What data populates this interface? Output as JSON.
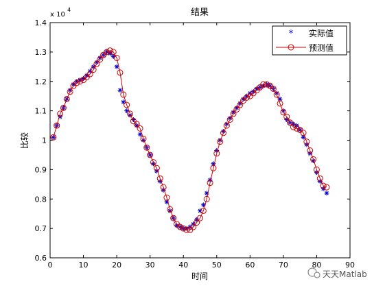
{
  "watermark_text": "天天Matlab",
  "chart_data": {
    "type": "line",
    "title": "结果",
    "xlabel": "时间",
    "ylabel": "比较",
    "y_exponent_label": "x 10",
    "y_exponent_power": "4",
    "xlim": [
      0,
      90
    ],
    "ylim": [
      0.6,
      1.4
    ],
    "x_ticks": [
      0,
      10,
      20,
      30,
      40,
      50,
      60,
      70,
      80,
      90
    ],
    "y_ticks": [
      0.6,
      0.7,
      0.8,
      0.9,
      1.0,
      1.1,
      1.2,
      1.3,
      1.4
    ],
    "y_tick_labels": [
      "0.6",
      "0.7",
      "0.8",
      "0.9",
      "1",
      "1.1",
      "1.2",
      "1.3",
      "1.4"
    ],
    "grid": false,
    "legend_position": "top-right",
    "x": [
      1,
      2,
      3,
      4,
      5,
      6,
      7,
      8,
      9,
      10,
      11,
      12,
      13,
      14,
      15,
      16,
      17,
      18,
      19,
      20,
      21,
      22,
      23,
      24,
      25,
      26,
      27,
      28,
      29,
      30,
      31,
      32,
      33,
      34,
      35,
      36,
      37,
      38,
      39,
      40,
      41,
      42,
      43,
      44,
      45,
      46,
      47,
      48,
      49,
      50,
      51,
      52,
      53,
      54,
      55,
      56,
      57,
      58,
      59,
      60,
      61,
      62,
      63,
      64,
      65,
      66,
      67,
      68,
      69,
      70,
      71,
      72,
      73,
      74,
      75,
      76,
      77,
      78,
      79,
      80,
      81,
      82,
      83
    ],
    "series": [
      {
        "name": "实际值",
        "color": "#0000cc",
        "marker": "star",
        "values": [
          1.01,
          1.05,
          1.08,
          1.11,
          1.14,
          1.17,
          1.19,
          1.2,
          1.205,
          1.21,
          1.22,
          1.235,
          1.25,
          1.265,
          1.28,
          1.29,
          1.3,
          1.295,
          1.285,
          1.25,
          1.17,
          1.13,
          1.1,
          1.085,
          1.07,
          1.05,
          1.02,
          1.0,
          0.975,
          0.95,
          0.92,
          0.895,
          0.86,
          0.83,
          0.79,
          0.76,
          0.735,
          0.71,
          0.705,
          0.7,
          0.7,
          0.705,
          0.715,
          0.73,
          0.76,
          0.78,
          0.82,
          0.865,
          0.92,
          0.965,
          1.0,
          1.03,
          1.055,
          1.075,
          1.095,
          1.11,
          1.125,
          1.14,
          1.15,
          1.16,
          1.165,
          1.175,
          1.18,
          1.185,
          1.19,
          1.185,
          1.175,
          1.16,
          1.14,
          1.1,
          1.07,
          1.06,
          1.055,
          1.05,
          1.035,
          1.01,
          0.985,
          0.955,
          0.93,
          0.89,
          0.86,
          0.835,
          0.82
        ]
      },
      {
        "name": "预测值",
        "color": "#cc0000",
        "marker": "circle",
        "values": [
          1.01,
          1.05,
          1.09,
          1.11,
          1.14,
          1.165,
          1.185,
          1.195,
          1.2,
          1.205,
          1.215,
          1.225,
          1.24,
          1.26,
          1.275,
          1.29,
          1.3,
          1.305,
          1.3,
          1.28,
          1.23,
          1.155,
          1.12,
          1.09,
          1.065,
          1.055,
          1.04,
          1.005,
          0.975,
          0.95,
          0.925,
          0.905,
          0.87,
          0.84,
          0.805,
          0.765,
          0.735,
          0.715,
          0.705,
          0.7,
          0.695,
          0.695,
          0.705,
          0.72,
          0.735,
          0.76,
          0.8,
          0.855,
          0.905,
          0.955,
          0.995,
          1.025,
          1.05,
          1.07,
          1.09,
          1.105,
          1.12,
          1.135,
          1.145,
          1.15,
          1.16,
          1.17,
          1.18,
          1.19,
          1.19,
          1.185,
          1.175,
          1.155,
          1.125,
          1.095,
          1.08,
          1.06,
          1.045,
          1.04,
          1.035,
          1.025,
          0.995,
          0.965,
          0.935,
          0.9,
          0.87,
          0.845,
          0.84
        ]
      }
    ]
  }
}
